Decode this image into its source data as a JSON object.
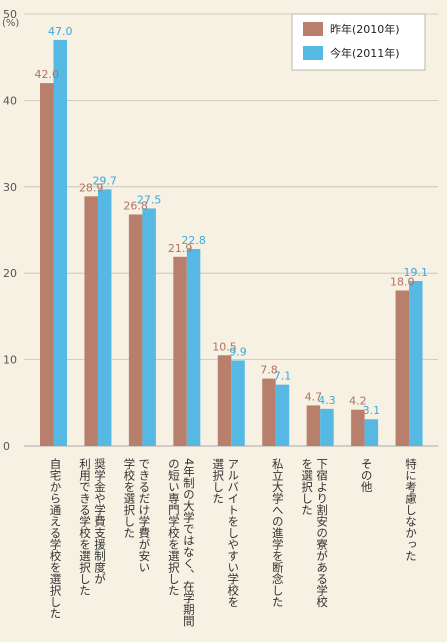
{
  "chart_data": {
    "type": "bar",
    "unit_label": "(%)",
    "ylim": [
      0,
      50
    ],
    "yticks": [
      0,
      10,
      20,
      30,
      40,
      50
    ],
    "grid": true,
    "legend_position": "top-right",
    "categories": [
      "自宅から通える学校を選択した",
      "奨学金や学費支援制度が利用できる学校を選択した",
      "できるだけ学費が安い学校を選択した",
      "4年制の大学ではなく、在学期間の短い専門学校を選択した",
      "アルバイトをしやすい学校を選択した",
      "私立大学への進学を断念した",
      "下宿より割安の寮がある学校を選択した",
      "その他",
      "特に考慮しなかった"
    ],
    "category_lines": [
      [
        "自宅から通える学校を選択した"
      ],
      [
        "奨学金や学費支援制度が",
        "利用できる学校を選択した"
      ],
      [
        "できるだけ学費が安い",
        "学校を選択した"
      ],
      [
        "4年制の大学ではなく、在学期間",
        "の短い専門学校を選択した"
      ],
      [
        "アルバイトをしやすい学校を",
        "選択した"
      ],
      [
        "私立大学への進学を断念した"
      ],
      [
        "下宿より割安の寮がある学校",
        "を選択した"
      ],
      [
        "その他"
      ],
      [
        "特に考慮しなかった"
      ]
    ],
    "series": [
      {
        "name": "昨年(2010年)",
        "color": "#b87f6d",
        "label_color": "#b1735f",
        "values": [
          42.0,
          28.9,
          26.8,
          21.9,
          10.5,
          7.8,
          4.7,
          4.2,
          18.0
        ],
        "labels": [
          "42.0",
          "28.9",
          "26.8",
          "21.9",
          "10.5",
          "7.8",
          "4.7",
          "4.2",
          "18.0"
        ]
      },
      {
        "name": "今年(2011年)",
        "color": "#56b9e4",
        "label_color": "#3ea8d8",
        "values": [
          47.0,
          29.7,
          27.5,
          22.8,
          9.9,
          7.1,
          4.3,
          3.1,
          19.1
        ],
        "labels": [
          "47.0",
          "29.7",
          "27.5",
          "22.8",
          "9.9",
          "7.1",
          "4.3",
          "3.1",
          "19.1"
        ]
      }
    ]
  }
}
